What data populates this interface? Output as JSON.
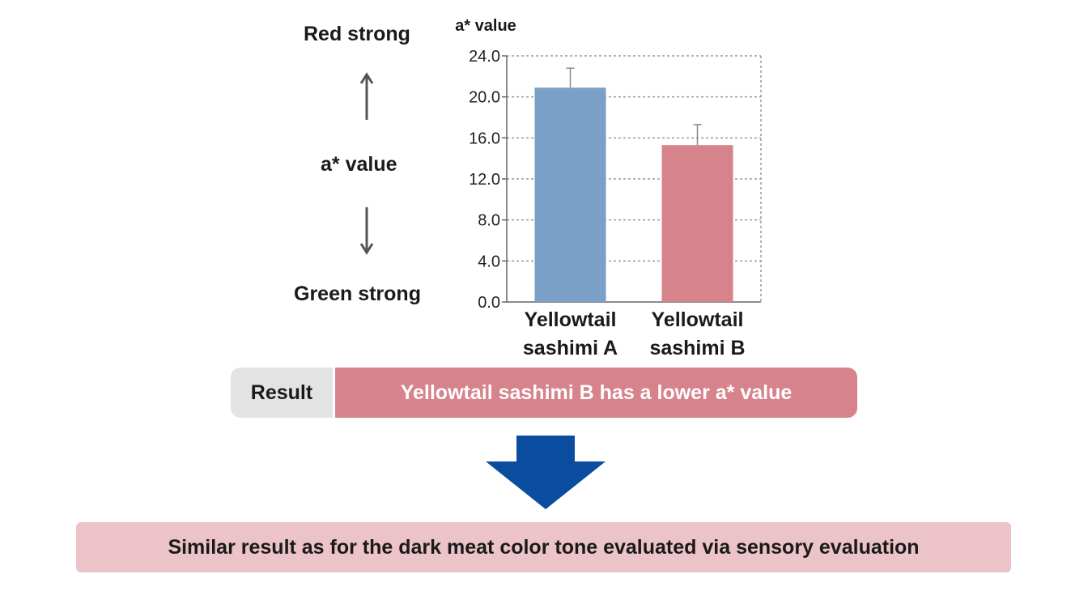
{
  "scale": {
    "top_label": "Red strong",
    "middle_label": "a* value",
    "bottom_label": "Green strong"
  },
  "chart_data": {
    "type": "bar",
    "ylabel": "a* value",
    "ylim": [
      0,
      24
    ],
    "yticks": [
      "0.0",
      "4.0",
      "8.0",
      "12.0",
      "16.0",
      "20.0",
      "24.0"
    ],
    "grid": true,
    "categories": [
      [
        "Yellowtail",
        "sashimi A"
      ],
      [
        "Yellowtail",
        "sashimi B"
      ]
    ],
    "values": [
      20.9,
      15.3
    ],
    "error_upper": [
      22.8,
      17.3
    ],
    "colors": [
      "#7aa0c7",
      "#d6838c"
    ]
  },
  "result": {
    "tag": "Result",
    "text": "Yellowtail sashimi B has a lower a* value"
  },
  "conclusion": "Similar result as for the dark meat color tone evaluated via sensory evaluation",
  "colors": {
    "arrow": "#0a4d9e",
    "result_highlight": "#d6838c",
    "conclusion_bg": "#ebc3c8"
  }
}
